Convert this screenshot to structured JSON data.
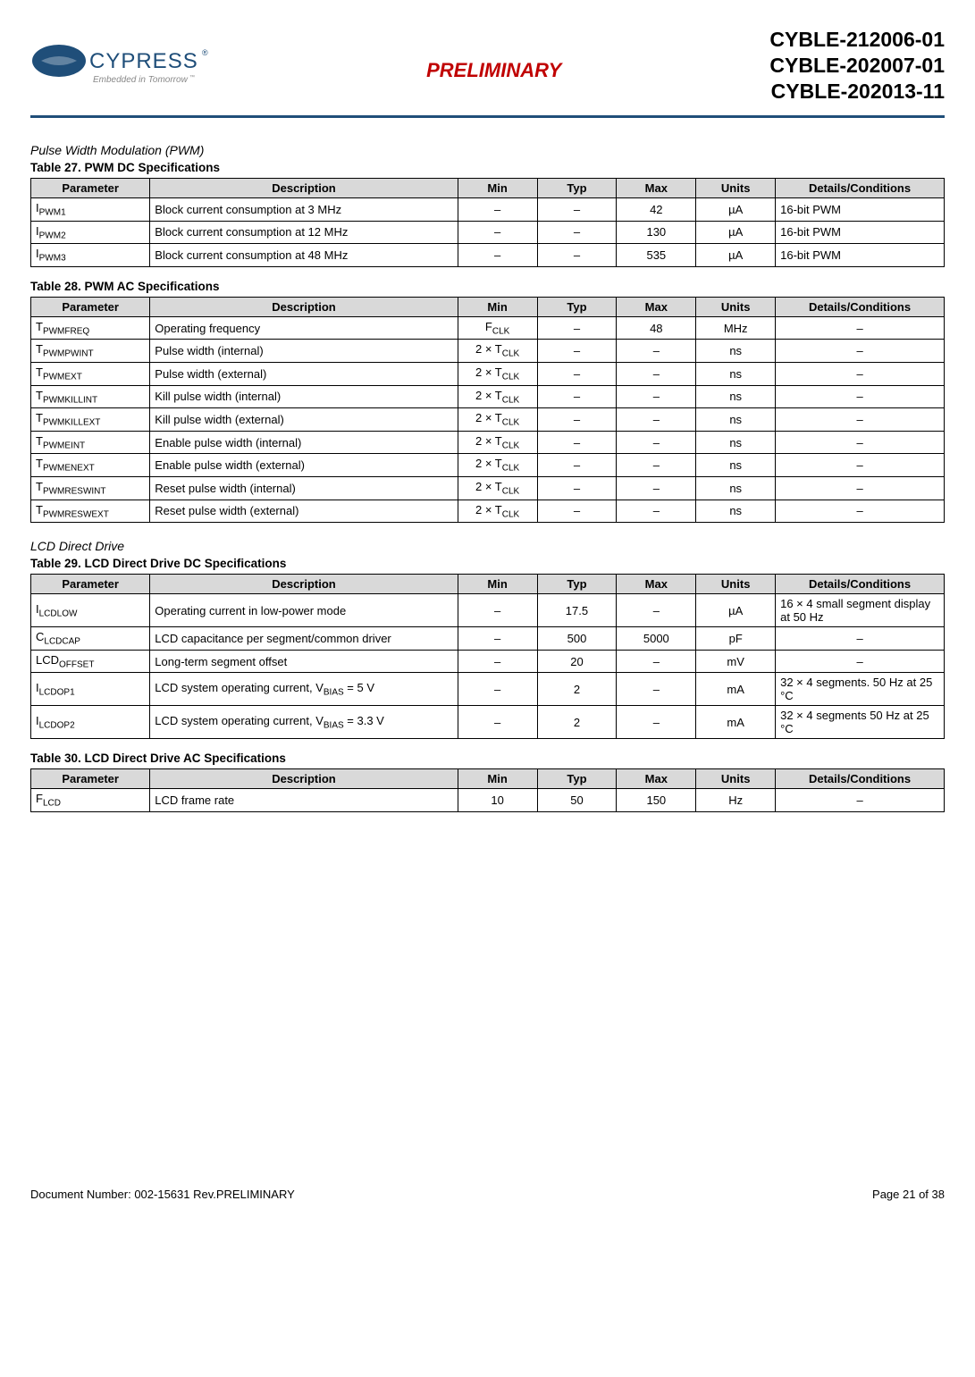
{
  "header": {
    "logo_text_main": "CYPRESS",
    "logo_text_sub": "Embedded in Tomorrow",
    "preliminary": "PRELIMINARY",
    "part_numbers": "CYBLE-212006-01\nCYBLE-202007-01\nCYBLE-202013-11"
  },
  "colors": {
    "header_rule": "#1f4e79",
    "preliminary": "#c00000",
    "table_header_bg": "#d9d9d9",
    "table_border": "#000000"
  },
  "section_pwm": {
    "title": "Pulse Width Modulation (PWM)"
  },
  "table27": {
    "title": "Table 27.  PWM DC Specifications",
    "headers": {
      "param": "Parameter",
      "desc": "Description",
      "min": "Min",
      "typ": "Typ",
      "max": "Max",
      "units": "Units",
      "det": "Details/Conditions"
    },
    "rows": [
      {
        "param_base": "I",
        "param_sub": "PWM1",
        "desc": "Block current consumption at 3 MHz",
        "min": "–",
        "typ": "–",
        "max": "42",
        "units": "µA",
        "det": "16-bit PWM"
      },
      {
        "param_base": "I",
        "param_sub": "PWM2",
        "desc": "Block current consumption at 12 MHz",
        "min": "–",
        "typ": "–",
        "max": "130",
        "units": "µA",
        "det": "16-bit PWM"
      },
      {
        "param_base": "I",
        "param_sub": "PWM3",
        "desc": "Block current consumption at 48 MHz",
        "min": "–",
        "typ": "–",
        "max": "535",
        "units": "µA",
        "det": "16-bit PWM"
      }
    ]
  },
  "table28": {
    "title": "Table 28.  PWM AC Specifications",
    "headers": {
      "param": "Parameter",
      "desc": "Description",
      "min": "Min",
      "typ": "Typ",
      "max": "Max",
      "units": "Units",
      "det": "Details/Conditions"
    },
    "rows": [
      {
        "param_base": "T",
        "param_sub": "PWMFREQ",
        "desc": "Operating frequency",
        "min_base": "F",
        "min_sub": "CLK",
        "typ": "–",
        "max": "48",
        "units": "MHz",
        "det": "–"
      },
      {
        "param_base": "T",
        "param_sub": "PWMPWINT",
        "desc": "Pulse width (internal)",
        "min_pref": "2 × T",
        "min_sub": "CLK",
        "typ": "–",
        "max": "–",
        "units": "ns",
        "det": "–"
      },
      {
        "param_base": "T",
        "param_sub": "PWMEXT",
        "desc": "Pulse width (external)",
        "min_pref": "2 × T",
        "min_sub": "CLK",
        "typ": "–",
        "max": "–",
        "units": "ns",
        "det": "–"
      },
      {
        "param_base": "T",
        "param_sub": "PWMKILLINT",
        "desc": "Kill pulse width (internal)",
        "min_pref": "2 × T",
        "min_sub": "CLK",
        "typ": "–",
        "max": "–",
        "units": "ns",
        "det": "–"
      },
      {
        "param_base": "T",
        "param_sub": "PWMKILLEXT",
        "desc": "Kill pulse width (external)",
        "min_pref": "2 × T",
        "min_sub": "CLK",
        "typ": "–",
        "max": "–",
        "units": "ns",
        "det": "–"
      },
      {
        "param_base": "T",
        "param_sub": "PWMEINT",
        "desc": "Enable pulse width (internal)",
        "min_pref": "2 × T",
        "min_sub": "CLK",
        "typ": "–",
        "max": "–",
        "units": "ns",
        "det": "–"
      },
      {
        "param_base": "T",
        "param_sub": "PWMENEXT",
        "desc": "Enable pulse width (external)",
        "min_pref": "2 × T",
        "min_sub": "CLK",
        "typ": "–",
        "max": "–",
        "units": "ns",
        "det": "–"
      },
      {
        "param_base": "T",
        "param_sub": "PWMRESWINT",
        "desc": "Reset pulse width (internal)",
        "min_pref": "2 × T",
        "min_sub": "CLK",
        "typ": "–",
        "max": "–",
        "units": "ns",
        "det": "–"
      },
      {
        "param_base": "T",
        "param_sub": "PWMRESWEXT",
        "desc": "Reset pulse width (external)",
        "min_pref": "2 × T",
        "min_sub": "CLK",
        "typ": "–",
        "max": "–",
        "units": "ns",
        "det": "–"
      }
    ]
  },
  "section_lcd": {
    "title": "LCD Direct Drive"
  },
  "table29": {
    "title": "Table 29.  LCD Direct Drive DC Specifications",
    "headers": {
      "param": "Parameter",
      "desc": "Description",
      "min": "Min",
      "typ": "Typ",
      "max": "Max",
      "units": "Units",
      "det": "Details/Conditions"
    },
    "rows": [
      {
        "param_base": "I",
        "param_sub": "LCDLOW",
        "desc": "Operating current in low-power mode",
        "min": "–",
        "typ": "17.5",
        "max": "–",
        "units": "µA",
        "det": "16 × 4 small segment display at 50 Hz"
      },
      {
        "param_base": "C",
        "param_sub": "LCDCAP",
        "desc": "LCD capacitance per segment/common driver",
        "min": "–",
        "typ": "500",
        "max": "5000",
        "units": "pF",
        "det": "–"
      },
      {
        "param_base": "LCD",
        "param_sub": "OFFSET",
        "desc": "Long-term segment offset",
        "min": "–",
        "typ": "20",
        "max": "–",
        "units": "mV",
        "det": "–"
      },
      {
        "param_base": "I",
        "param_sub": "LCDOP1",
        "desc_pref": "LCD system operating current, V",
        "desc_sub": "BIAS",
        "desc_suf": " = 5 V",
        "min": "–",
        "typ": "2",
        "max": "–",
        "units": "mA",
        "det": "32 × 4 segments. 50 Hz at 25 °C"
      },
      {
        "param_base": "I",
        "param_sub": "LCDOP2",
        "desc_pref": "LCD system operating current, V",
        "desc_sub": "BIAS",
        "desc_suf": " = 3.3 V",
        "min": "–",
        "typ": "2",
        "max": "–",
        "units": "mA",
        "det": "32 × 4 segments 50 Hz at 25 °C"
      }
    ]
  },
  "table30": {
    "title": "Table 30.  LCD Direct Drive AC Specifications",
    "headers": {
      "param": "Parameter",
      "desc": "Description",
      "min": "Min",
      "typ": "Typ",
      "max": "Max",
      "units": "Units",
      "det": "Details/Conditions"
    },
    "rows": [
      {
        "param_base": "F",
        "param_sub": "LCD",
        "desc": "LCD frame rate",
        "min": "10",
        "typ": "50",
        "max": "150",
        "units": "Hz",
        "det": "–"
      }
    ]
  },
  "footer": {
    "left": "Document Number: 002-15631 Rev.PRELIMINARY",
    "right": "Page 21 of 38"
  }
}
